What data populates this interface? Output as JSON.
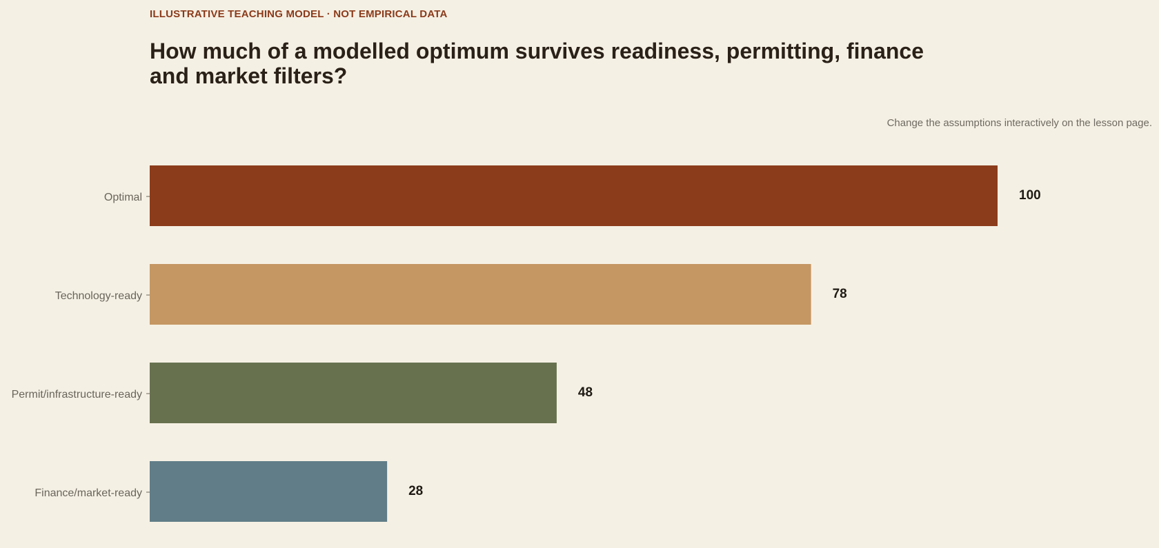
{
  "header": {
    "eyebrow": "ILLUSTRATIVE TEACHING MODEL · NOT EMPIRICAL DATA",
    "title": "How much of a modelled optimum survives readiness, permitting, finance and market filters?",
    "note": "Change the assumptions interactively on the lesson page."
  },
  "chart_data": {
    "type": "bar",
    "orientation": "horizontal",
    "categories": [
      "Optimal",
      "Technology-ready",
      "Permit/infrastructure-ready",
      "Finance/market-ready"
    ],
    "values": [
      100,
      78,
      48,
      28
    ],
    "colors": [
      "#8b3c1b",
      "#c59763",
      "#67714e",
      "#607d88"
    ],
    "xlim": [
      0,
      100
    ],
    "grid": false,
    "legend": "none",
    "data_labels": true
  }
}
